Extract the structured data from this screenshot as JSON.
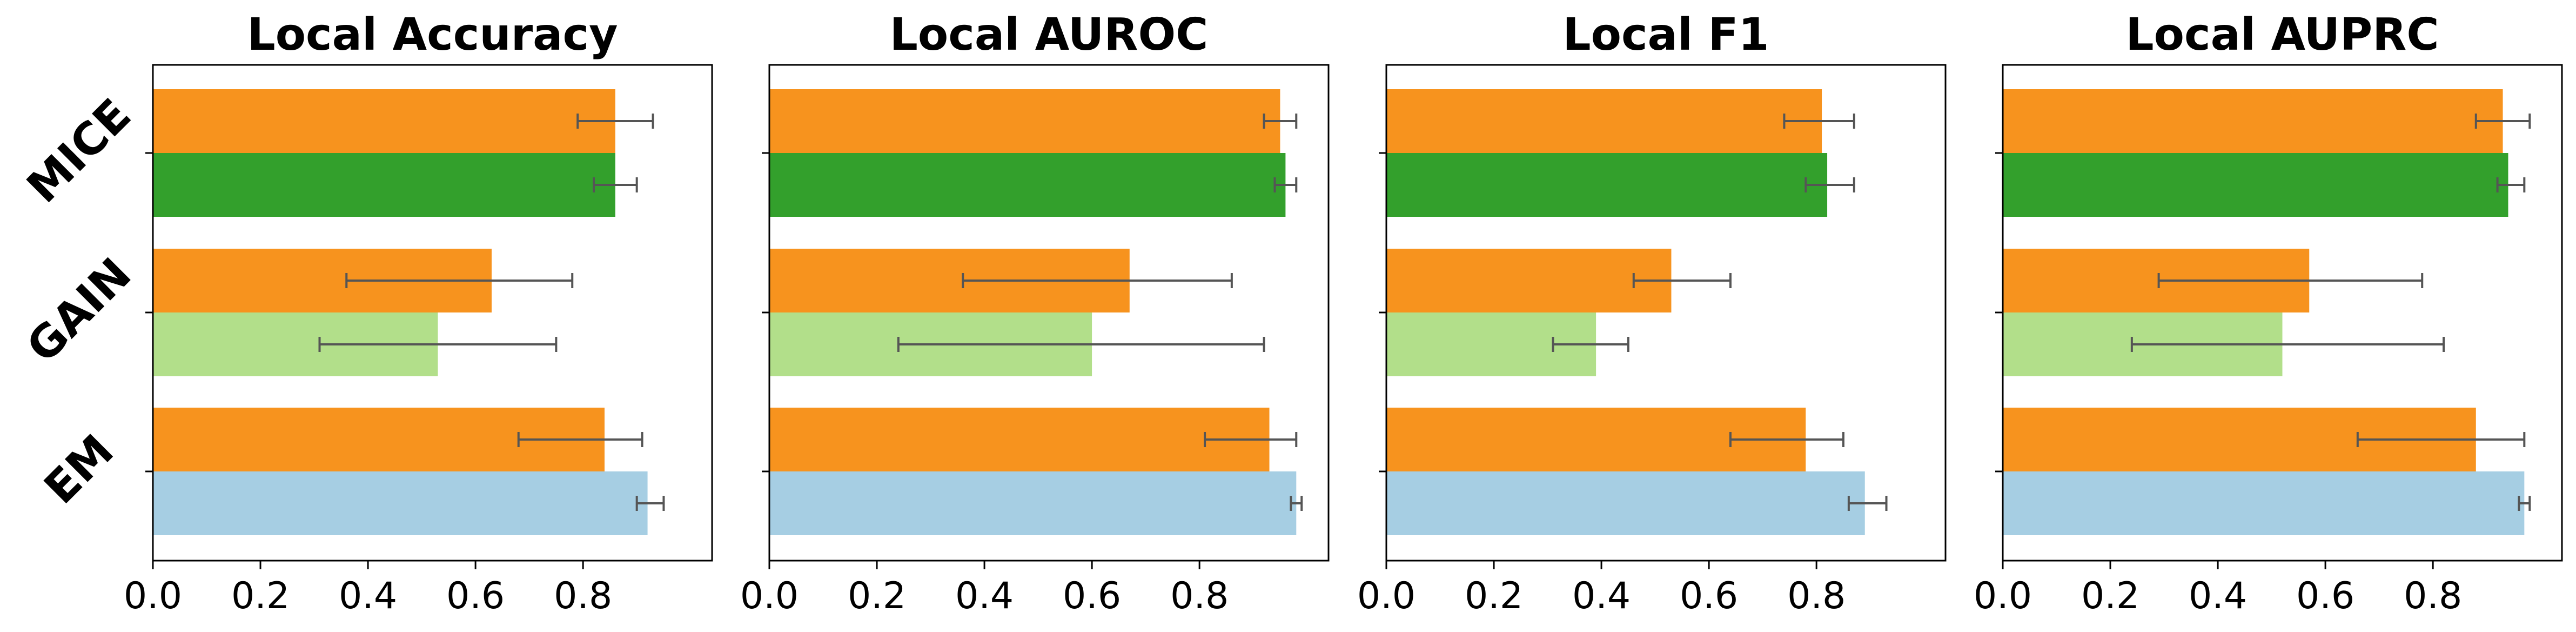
{
  "chart_data": {
    "type": "bar",
    "orientation": "horizontal",
    "categories": [
      "MICE",
      "GAIN",
      "EM"
    ],
    "series_colors": {
      "orange": "#f7931e",
      "MICE": "#33a02c",
      "GAIN": "#b2df8a",
      "EM": "#a6cee3"
    },
    "error_bar_color": "#555555",
    "xlim": [
      0,
      1.04
    ],
    "xticks": [
      "0.0",
      "0.2",
      "0.4",
      "0.6",
      "0.8"
    ],
    "panels": [
      {
        "title": "Local Accuracy",
        "bars": {
          "MICE": {
            "orange": 0.86,
            "orange_err": [
              0.79,
              0.93
            ],
            "method": 0.86,
            "method_err": [
              0.82,
              0.9
            ]
          },
          "GAIN": {
            "orange": 0.63,
            "orange_err": [
              0.36,
              0.78
            ],
            "method": 0.53,
            "method_err": [
              0.31,
              0.75
            ]
          },
          "EM": {
            "orange": 0.84,
            "orange_err": [
              0.68,
              0.91
            ],
            "method": 0.92,
            "method_err": [
              0.9,
              0.95
            ]
          }
        }
      },
      {
        "title": "Local AUROC",
        "bars": {
          "MICE": {
            "orange": 0.95,
            "orange_err": [
              0.92,
              0.98
            ],
            "method": 0.96,
            "method_err": [
              0.94,
              0.98
            ]
          },
          "GAIN": {
            "orange": 0.67,
            "orange_err": [
              0.36,
              0.86
            ],
            "method": 0.6,
            "method_err": [
              0.24,
              0.92
            ]
          },
          "EM": {
            "orange": 0.93,
            "orange_err": [
              0.81,
              0.98
            ],
            "method": 0.98,
            "method_err": [
              0.97,
              0.99
            ]
          }
        }
      },
      {
        "title": "Local F1",
        "bars": {
          "MICE": {
            "orange": 0.81,
            "orange_err": [
              0.74,
              0.87
            ],
            "method": 0.82,
            "method_err": [
              0.78,
              0.87
            ]
          },
          "GAIN": {
            "orange": 0.53,
            "orange_err": [
              0.46,
              0.64
            ],
            "method": 0.39,
            "method_err": [
              0.31,
              0.45
            ]
          },
          "EM": {
            "orange": 0.78,
            "orange_err": [
              0.64,
              0.85
            ],
            "method": 0.89,
            "method_err": [
              0.86,
              0.93
            ]
          }
        }
      },
      {
        "title": "Local AUPRC",
        "bars": {
          "MICE": {
            "orange": 0.93,
            "orange_err": [
              0.88,
              0.98
            ],
            "method": 0.94,
            "method_err": [
              0.92,
              0.97
            ]
          },
          "GAIN": {
            "orange": 0.57,
            "orange_err": [
              0.29,
              0.78
            ],
            "method": 0.52,
            "method_err": [
              0.24,
              0.82
            ]
          },
          "EM": {
            "orange": 0.88,
            "orange_err": [
              0.66,
              0.97
            ],
            "method": 0.97,
            "method_err": [
              0.96,
              0.98
            ]
          }
        }
      }
    ]
  }
}
